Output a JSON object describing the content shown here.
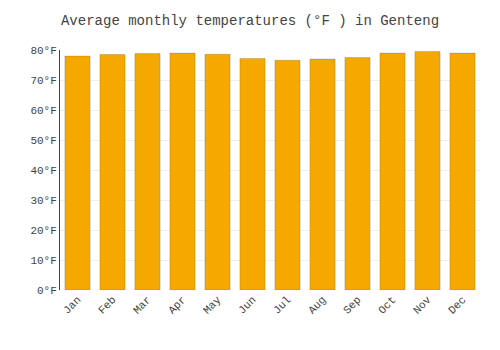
{
  "chart_data": {
    "type": "bar",
    "title": "Average monthly temperatures (°F ) in Genteng",
    "categories": [
      "Jan",
      "Feb",
      "Mar",
      "Apr",
      "May",
      "Jun",
      "Jul",
      "Aug",
      "Sep",
      "Oct",
      "Nov",
      "Dec"
    ],
    "values": [
      78.0,
      78.5,
      78.8,
      79.0,
      78.6,
      77.2,
      76.6,
      77.0,
      77.5,
      79.0,
      79.5,
      79.0
    ],
    "color": "#F5A800",
    "ylim": [
      0,
      80
    ],
    "yticks": [
      {
        "value": 0,
        "label": "0°F"
      },
      {
        "value": 10,
        "label": "10°F"
      },
      {
        "value": 20,
        "label": "20°F"
      },
      {
        "value": 30,
        "label": "30°F"
      },
      {
        "value": 40,
        "label": "40°F"
      },
      {
        "value": 50,
        "label": "50°F"
      },
      {
        "value": 60,
        "label": "60°F"
      },
      {
        "value": 70,
        "label": "70°F"
      },
      {
        "value": 80,
        "label": "80°F"
      }
    ],
    "grid": true
  }
}
